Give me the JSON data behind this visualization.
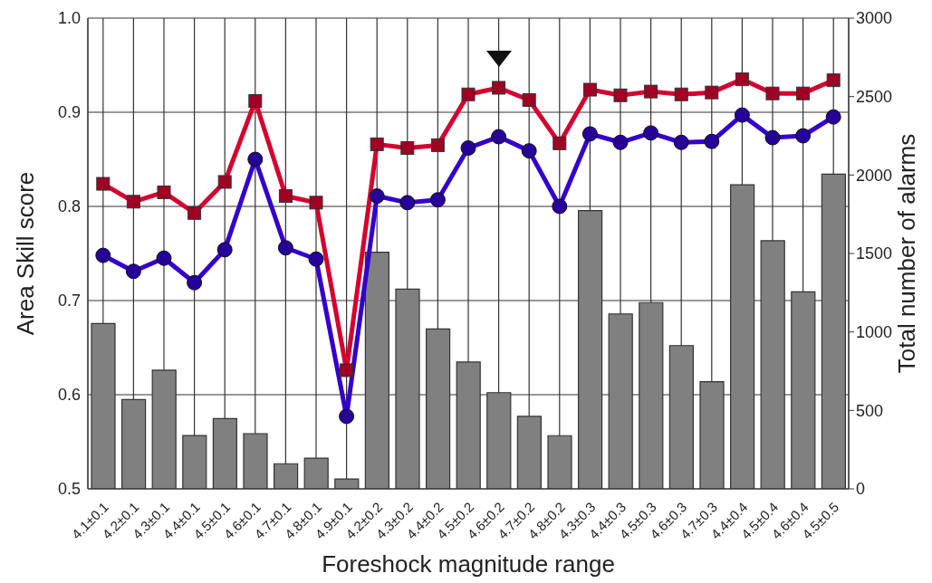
{
  "chart_data": {
    "type": "line",
    "xlabel": "Foreshock magnitude range",
    "ylabel": "Area Skill score",
    "y2label": "Total number of alarms",
    "categories": [
      "4.1±0.1",
      "4.2±0.1",
      "4.3±0.1",
      "4.4±0.1",
      "4.5±0.1",
      "4.6±0.1",
      "4.7±0.1",
      "4.8±0.1",
      "4.9±0.1",
      "4.2±0.2",
      "4.3±0.2",
      "4.4±0.2",
      "4.5±0.2",
      "4.6±0.2",
      "4.7±0.2",
      "4.8±0.2",
      "4.3±0.3",
      "4.4±0.3",
      "4.5±0.3",
      "4.6±0.3",
      "4.7±0.3",
      "4.4±0.4",
      "4.5±0.4",
      "4.6±0.4",
      "4.5±0.5"
    ],
    "series": [
      {
        "type": "bar",
        "axis": "y2",
        "color": "#808080",
        "values": [
          1054,
          569,
          756,
          340,
          448,
          352,
          160,
          196,
          63,
          1508,
          1273,
          1019,
          808,
          613,
          462,
          339,
          1773,
          1115,
          1187,
          913,
          683,
          1938,
          1581,
          1256,
          2006
        ]
      },
      {
        "marker": "square",
        "color": "#d4002f",
        "values": [
          0.824,
          0.805,
          0.815,
          0.793,
          0.826,
          0.912,
          0.811,
          0.804,
          0.626,
          0.866,
          0.862,
          0.865,
          0.919,
          0.926,
          0.913,
          0.867,
          0.924,
          0.918,
          0.922,
          0.919,
          0.921,
          0.935,
          0.92,
          0.92,
          0.934
        ]
      },
      {
        "marker": "circle",
        "color": "#3300cc",
        "values": [
          0.748,
          0.731,
          0.745,
          0.719,
          0.754,
          0.85,
          0.756,
          0.744,
          0.577,
          0.811,
          0.804,
          0.807,
          0.862,
          0.874,
          0.859,
          0.8,
          0.877,
          0.868,
          0.878,
          0.868,
          0.869,
          0.897,
          0.873,
          0.875,
          0.895
        ]
      }
    ],
    "ylim": [
      0.5,
      1.0
    ],
    "yticks": [
      {
        "value": 0.5,
        "label": "0.5"
      },
      {
        "value": 0.6,
        "label": "0.6"
      },
      {
        "value": 0.7,
        "label": "0.7"
      },
      {
        "value": 0.8,
        "label": "0.8"
      },
      {
        "value": 0.9,
        "label": "0.9"
      },
      {
        "value": 1.0,
        "label": "1.0"
      }
    ],
    "y2lim": [
      0,
      3000
    ],
    "y2ticks": [
      0,
      500,
      1000,
      1500,
      2000,
      2500,
      3000
    ],
    "grid": true,
    "legend": false,
    "line_style": "solid"
  }
}
